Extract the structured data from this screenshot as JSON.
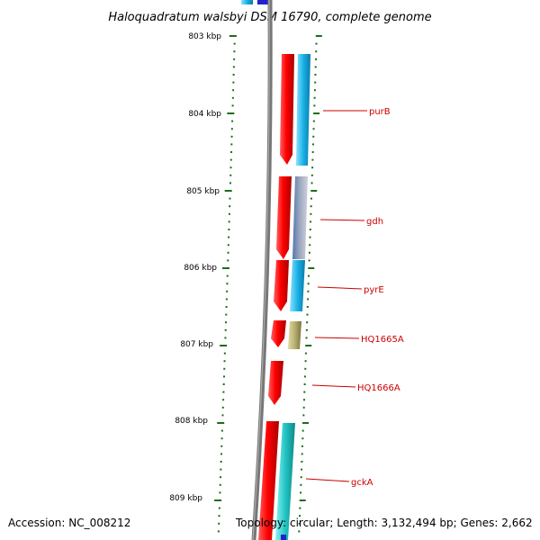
{
  "title": "Haloquadratum walsbyi DSM 16790, complete genome",
  "accession": "Accession: NC_008212",
  "summary": "Topology: circular; Length: 3,132,494 bp; Genes: 2,662",
  "colors": {
    "backbone": "#777777",
    "tick": "#1a6e1a",
    "forward_cds": "#ff0000",
    "reverse_cds": "#1ab2e6",
    "reverse_cds_alt": "#22c4c4",
    "other_cds": "#b8b070",
    "label_text": "#cc0000",
    "gray_feature": "#9999bb"
  },
  "ruler": {
    "labels": [
      "803 kbp",
      "804 kbp",
      "805 kbp",
      "806 kbp",
      "807 kbp",
      "808 kbp",
      "809 kbp"
    ]
  },
  "genes": [
    {
      "name": "purB"
    },
    {
      "name": "gdh"
    },
    {
      "name": "pyrE"
    },
    {
      "name": "HQ1665A"
    },
    {
      "name": "HQ1666A"
    },
    {
      "name": "gckA"
    }
  ]
}
